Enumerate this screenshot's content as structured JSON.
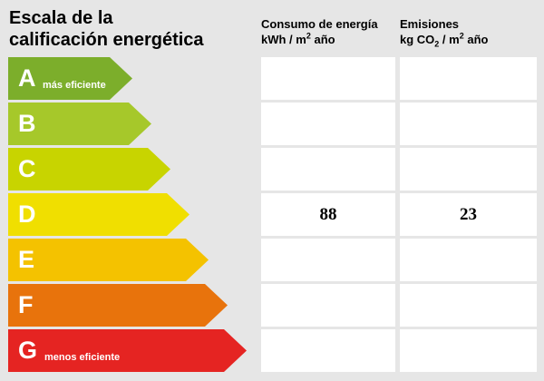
{
  "title_line1": "Escala de la",
  "title_line2": "calificación energética",
  "columns": {
    "consumo": {
      "title": "Consumo de energía",
      "unit_pre": "kWh / m",
      "unit_sup": "2",
      "unit_post": " año"
    },
    "emisiones": {
      "title": "Emisiones",
      "unit_pre": "kg CO",
      "unit_sub": "2",
      "unit_post": " / m",
      "unit_sup": "2",
      "unit_post2": " año"
    }
  },
  "rows": [
    {
      "letter": "A",
      "color": "#7cae2b",
      "note": "más eficiente",
      "consumo": "",
      "emisiones": ""
    },
    {
      "letter": "B",
      "color": "#a6c82a",
      "note": "",
      "consumo": "",
      "emisiones": ""
    },
    {
      "letter": "C",
      "color": "#c8d400",
      "note": "",
      "consumo": "",
      "emisiones": ""
    },
    {
      "letter": "D",
      "color": "#f0df00",
      "note": "",
      "consumo": "88",
      "emisiones": "23"
    },
    {
      "letter": "E",
      "color": "#f4c200",
      "note": "",
      "consumo": "",
      "emisiones": ""
    },
    {
      "letter": "F",
      "color": "#e8730c",
      "note": "",
      "consumo": "",
      "emisiones": ""
    },
    {
      "letter": "G",
      "color": "#e52422",
      "note": "menos eficiente",
      "consumo": "",
      "emisiones": ""
    }
  ]
}
